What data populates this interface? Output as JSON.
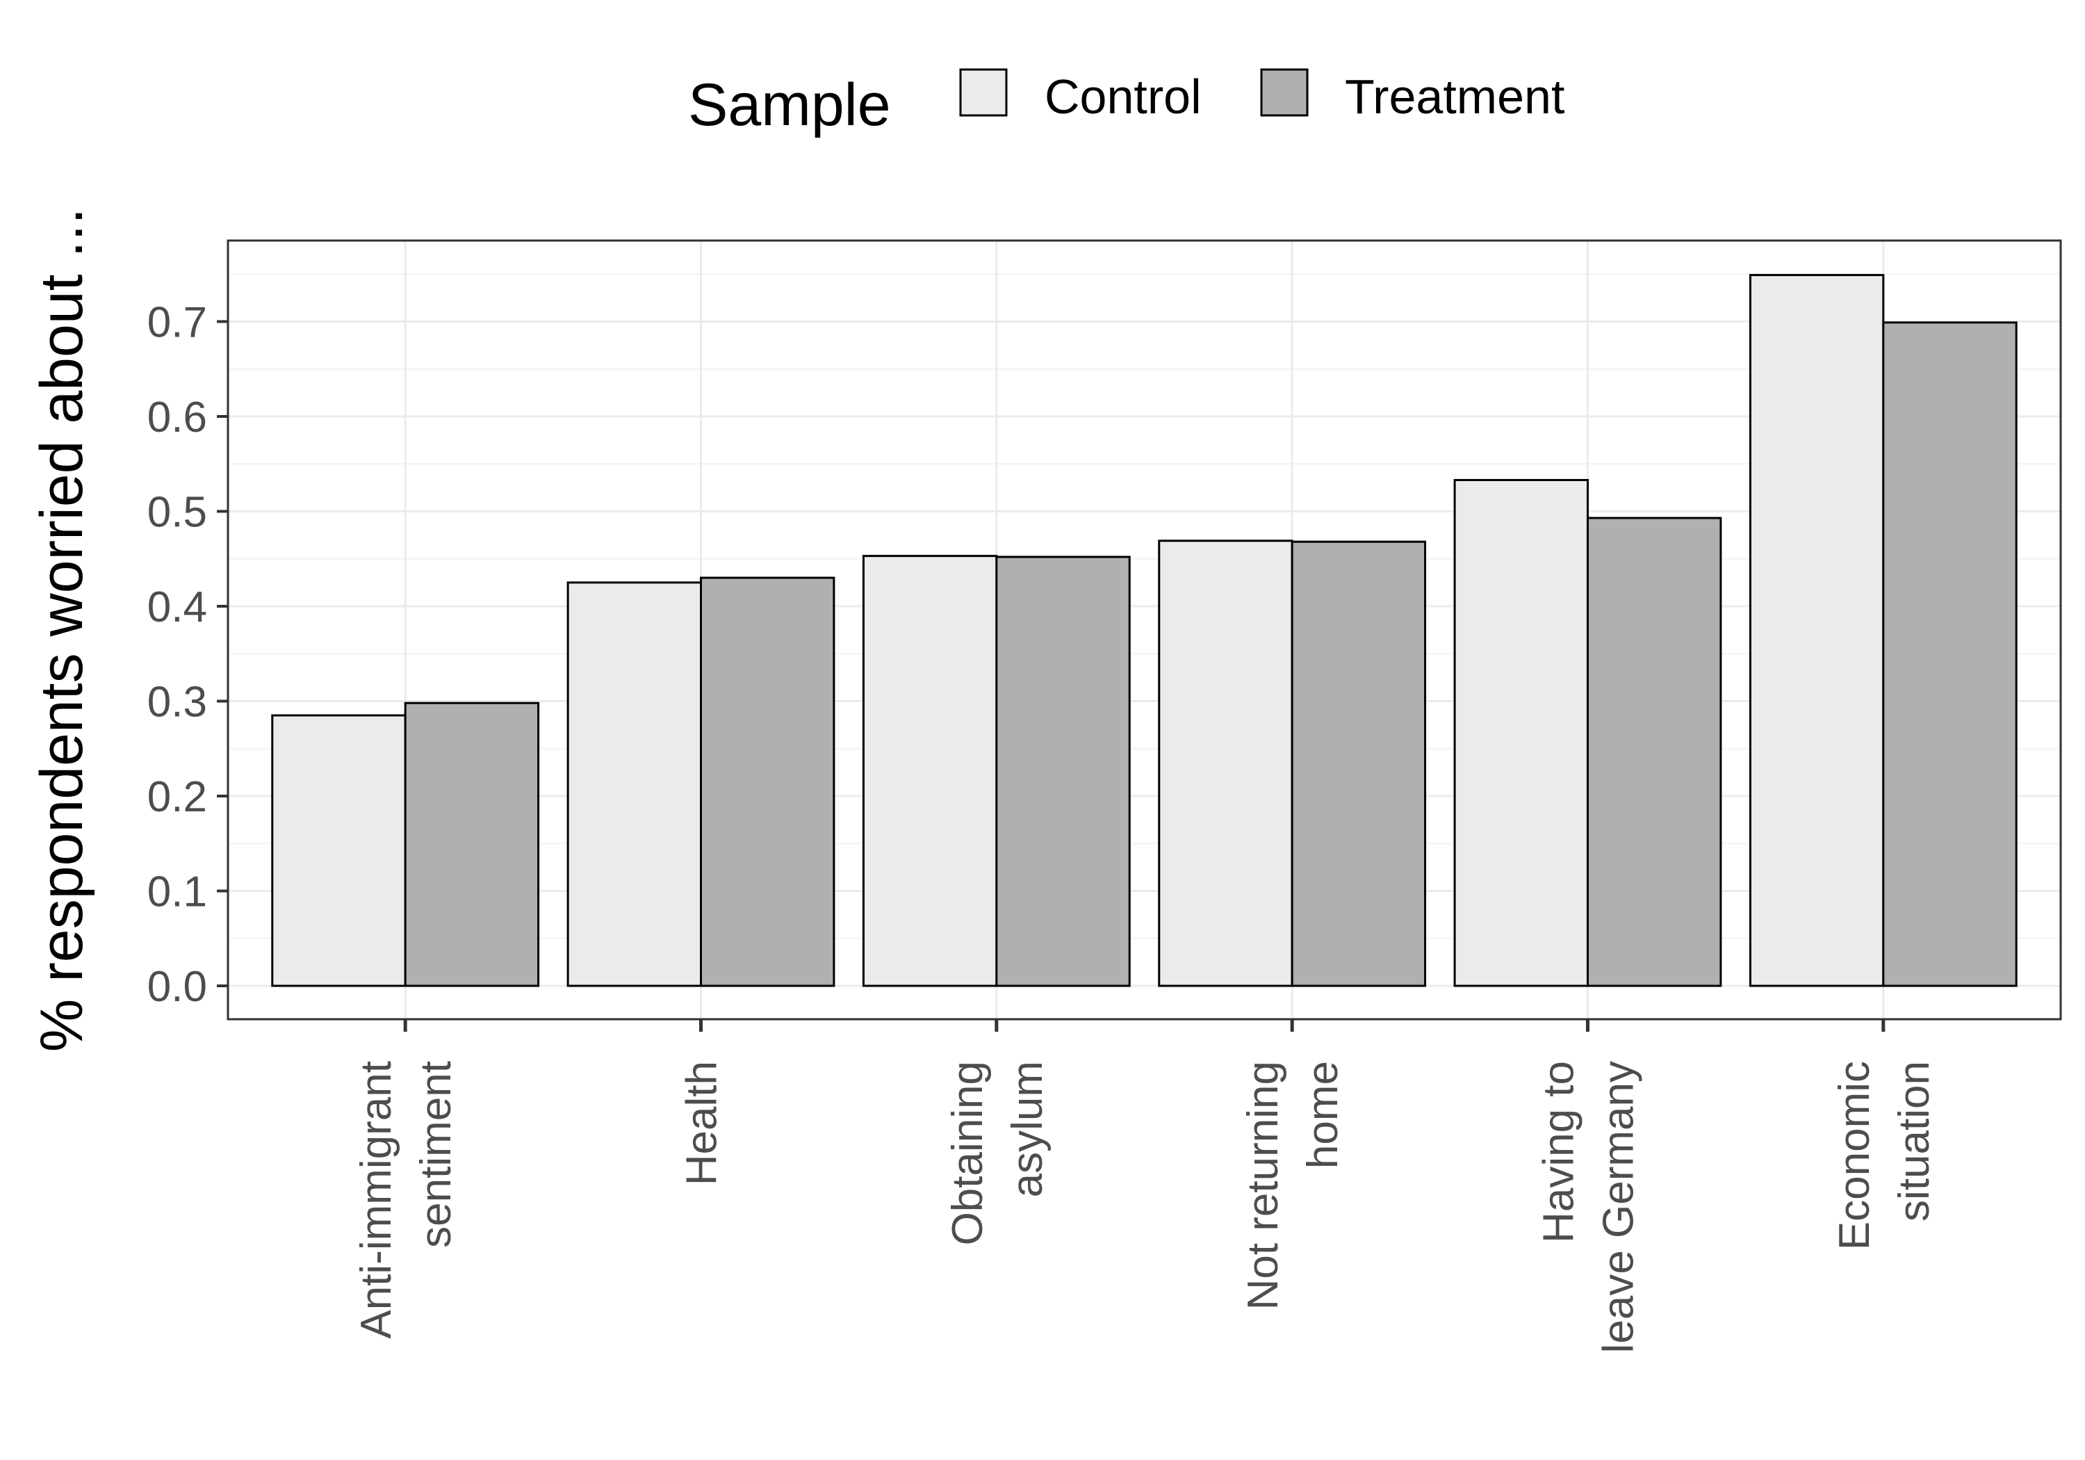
{
  "chart_data": {
    "type": "bar",
    "title": "",
    "xlabel": "",
    "ylabel": "% respondents worried about ...",
    "legend_title": "Sample",
    "legend_position": "top",
    "grid": true,
    "ylim": [
      0.0,
      0.78
    ],
    "yticks": [
      "0.0",
      "0.1",
      "0.2",
      "0.3",
      "0.4",
      "0.5",
      "0.6",
      "0.7"
    ],
    "categories": [
      [
        "Anti-immigrant",
        "sentiment"
      ],
      [
        "Health"
      ],
      [
        "Obtaining",
        "asylum"
      ],
      [
        "Not returning",
        "home"
      ],
      [
        "Having to",
        "leave Germany"
      ],
      [
        "Economic",
        "situation"
      ]
    ],
    "series": [
      {
        "name": "Control",
        "color": "#ebebeb",
        "values": [
          0.285,
          0.425,
          0.453,
          0.469,
          0.533,
          0.749
        ]
      },
      {
        "name": "Treatment",
        "color": "#b0b0b0",
        "values": [
          0.298,
          0.43,
          0.452,
          0.468,
          0.493,
          0.699
        ]
      }
    ]
  }
}
